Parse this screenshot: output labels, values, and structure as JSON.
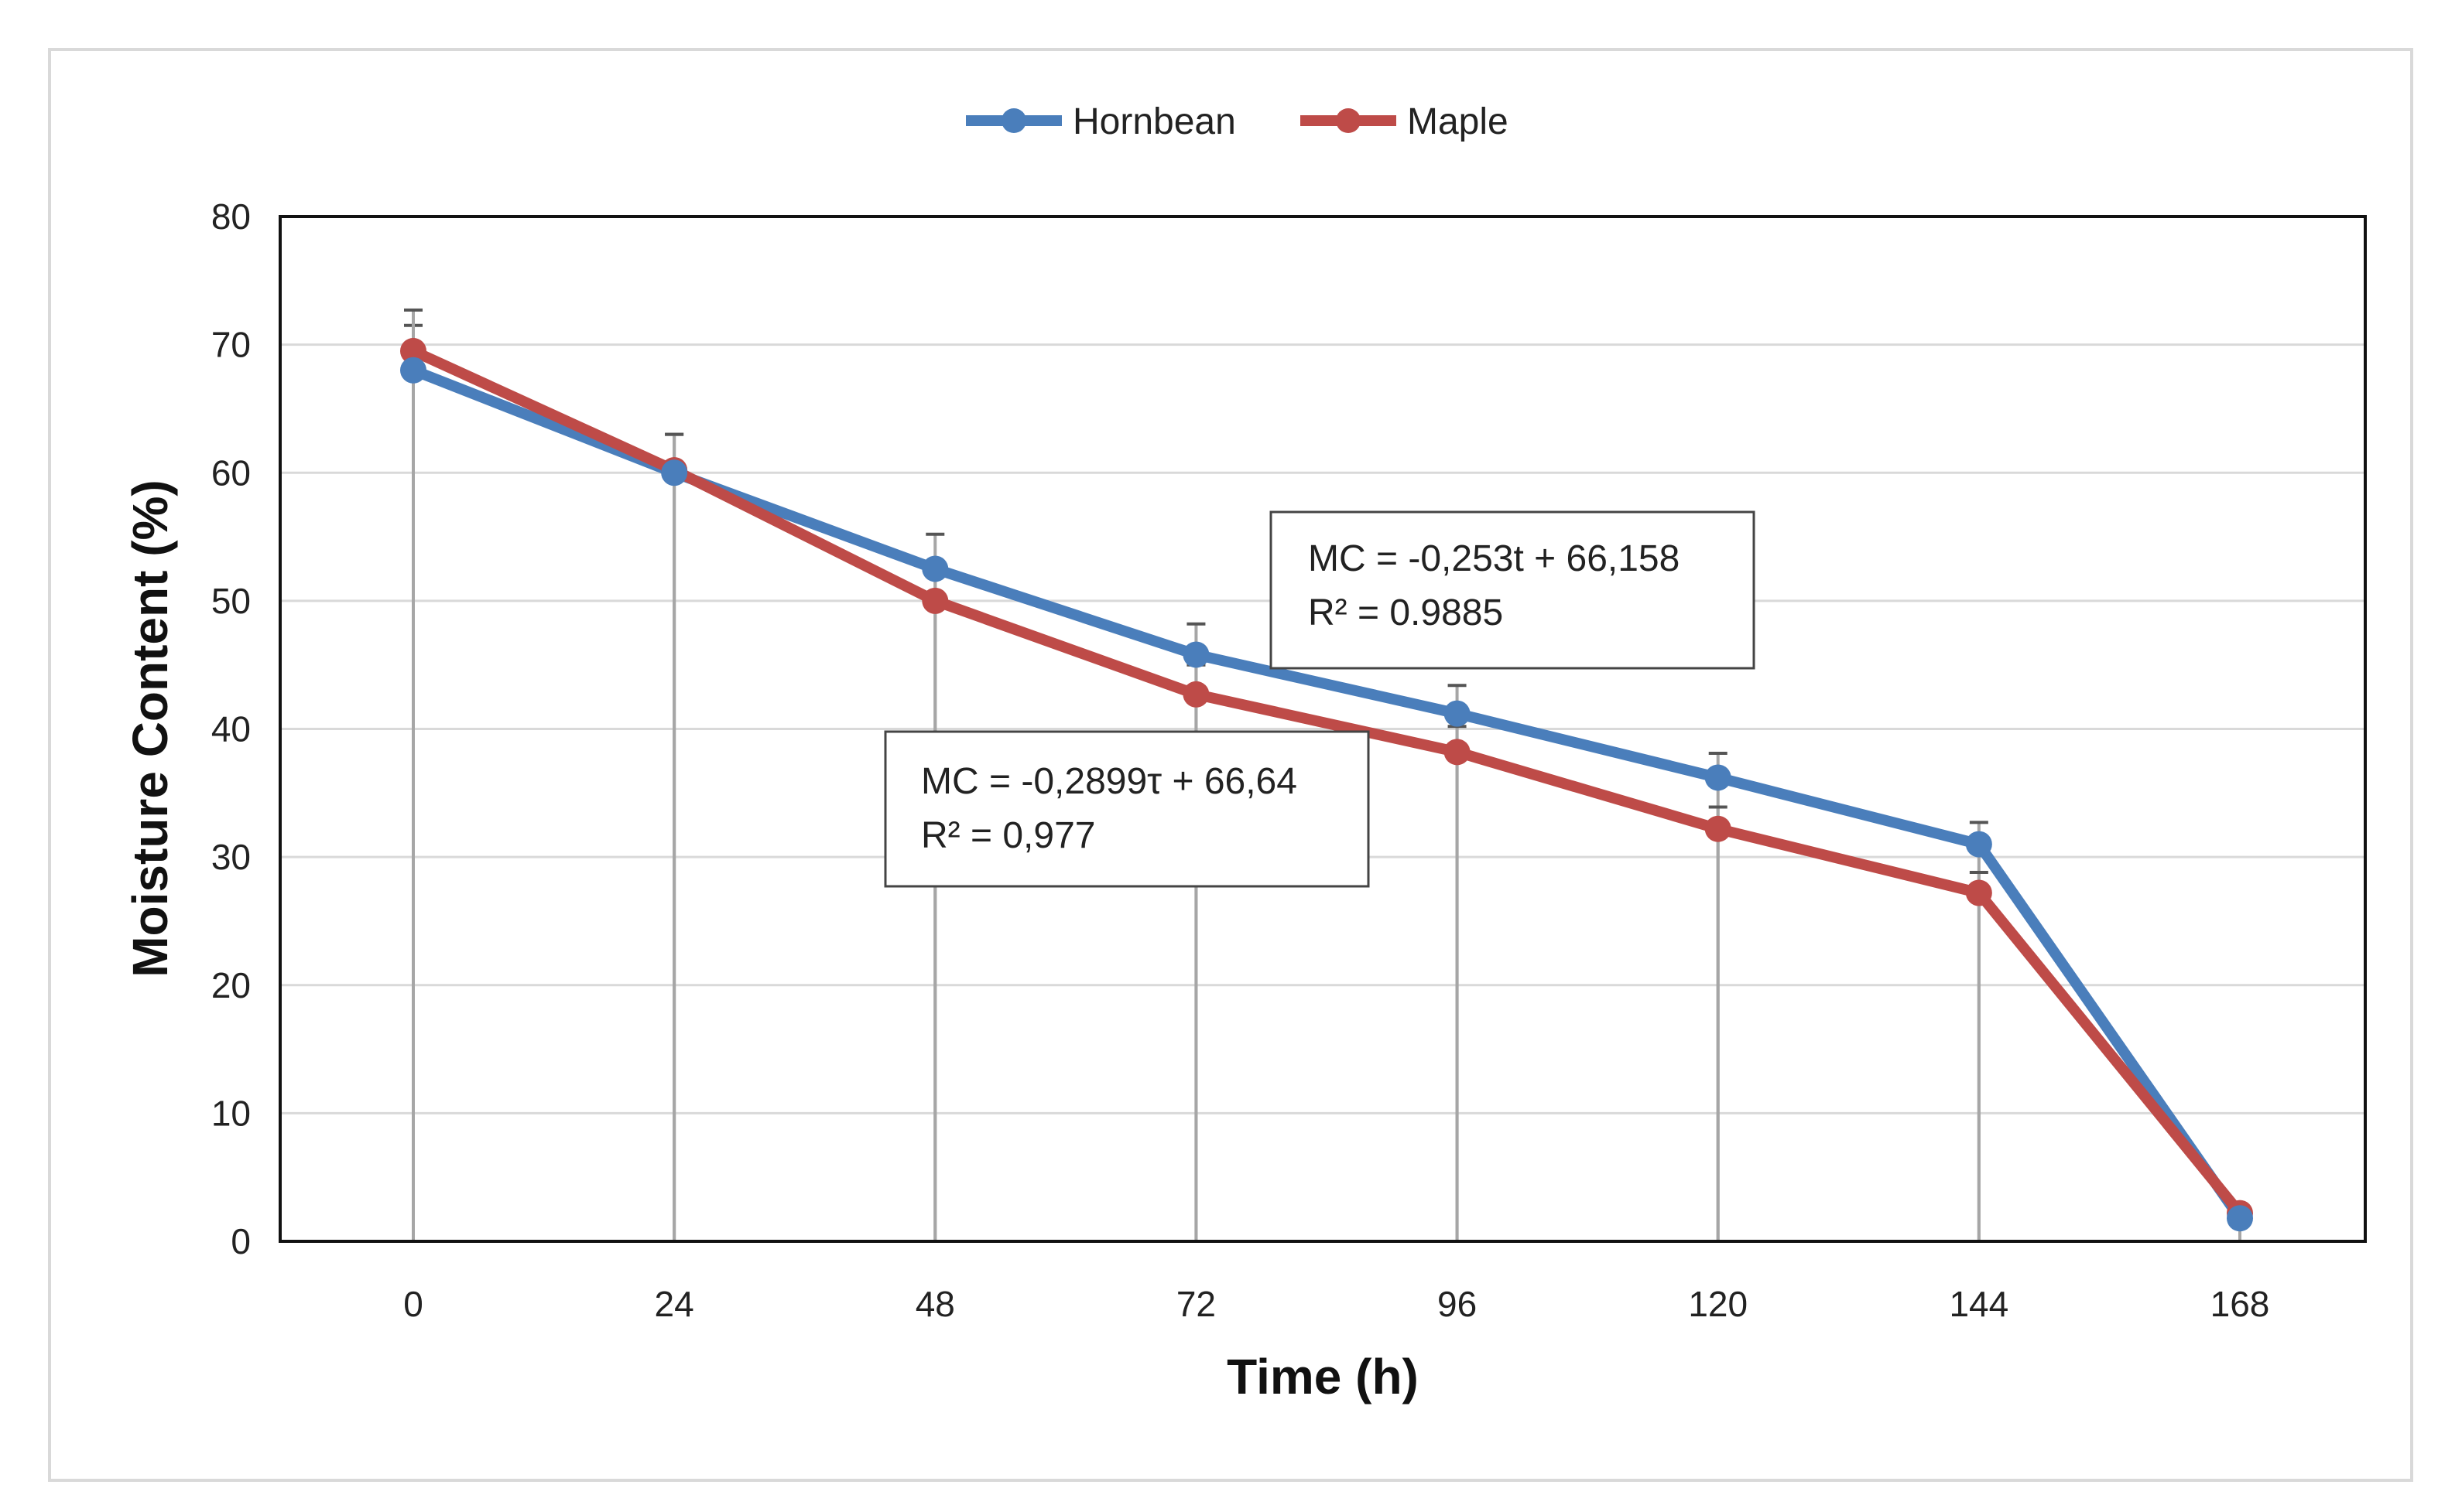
{
  "chart_data": {
    "type": "line",
    "title": "",
    "xlabel": "Time (h)",
    "ylabel": "Moisture Content (%)",
    "x": [
      0,
      24,
      48,
      72,
      96,
      120,
      144,
      168
    ],
    "x_tick_labels": [
      "0",
      "24",
      "48",
      "72",
      "96",
      "120",
      "144",
      "168"
    ],
    "y_tick_labels": [
      "0",
      "10",
      "20",
      "30",
      "40",
      "50",
      "60",
      "70",
      "80"
    ],
    "ylim": [
      0,
      80
    ],
    "grid": "horizontal",
    "legend_position": "top-center",
    "series": [
      {
        "name": "Hornbean",
        "color": "#4a7ebb",
        "values": [
          68,
          60,
          52.5,
          45.8,
          41.2,
          36.2,
          31,
          1.8
        ],
        "error_upper": [
          3.5,
          3,
          2.7,
          2.4,
          2.2,
          1.9,
          1.7,
          0.3
        ],
        "error_lower": [
          68,
          60,
          52.5,
          45.8,
          41.2,
          36.2,
          31,
          1.8
        ]
      },
      {
        "name": "Maple",
        "color": "#be4b48",
        "values": [
          69.5,
          60.2,
          50,
          42.7,
          38.2,
          32.2,
          27.2,
          2.2
        ],
        "error_upper": [
          3.2,
          2.8,
          2.6,
          2.3,
          2.0,
          1.7,
          1.6,
          0.3
        ],
        "error_lower": [
          69.5,
          60.2,
          50,
          42.7,
          38.2,
          32.2,
          27.2,
          2.2
        ]
      }
    ],
    "annotations": [
      {
        "series": "Hornbean",
        "equation": "MC = -0,253t + 66,158",
        "r2": "R² = 0.9885"
      },
      {
        "series": "Maple",
        "equation": "MC = -0,2899τ + 66,64",
        "r2": "R² = 0,977"
      }
    ]
  }
}
